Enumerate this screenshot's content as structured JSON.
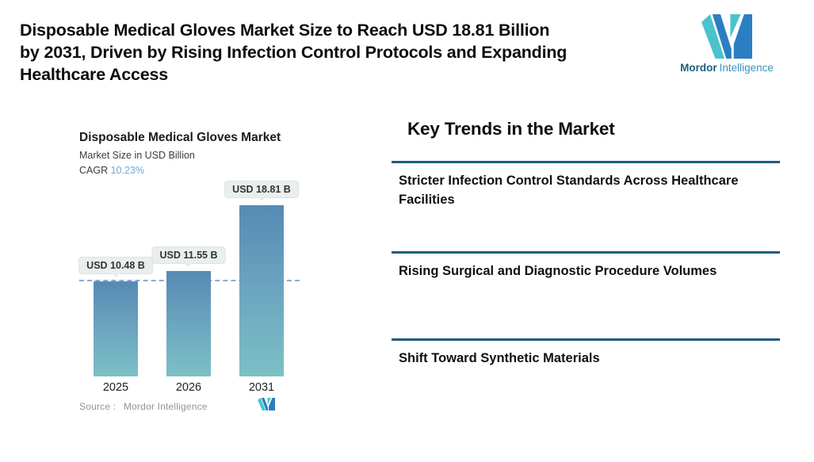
{
  "header": {
    "title_lines": [
      "Disposable Medical Gloves Market Size to Reach USD 18.81 Billion",
      "by 2031, Driven by Rising Infection Control Protocols and Expanding",
      "Healthcare Access"
    ],
    "logo": {
      "name_bold": "Mordor",
      "name_light": "Intelligence"
    }
  },
  "chart": {
    "title": "Disposable Medical Gloves Market",
    "subtitle": "Market Size in USD Billion",
    "cagr_label": "CAGR",
    "cagr_value": "10.23%",
    "source_label": "Source :",
    "source_name": "Mordor Intelligence"
  },
  "chart_data": {
    "type": "bar",
    "title": "Disposable Medical Gloves Market",
    "ylabel": "Market Size in USD Billion",
    "cagr_percent": 10.23,
    "categories": [
      "2025",
      "2026",
      "2031"
    ],
    "values": [
      10.48,
      11.55,
      18.81
    ],
    "value_labels": [
      "USD 10.48 B",
      "USD 11.55 B",
      "USD 18.81 B"
    ],
    "reference_line_at": 10.48,
    "grid": false,
    "legend": false,
    "bar_gradient_top": "#578ab4",
    "bar_gradient_mid": "#6ba4bf",
    "bar_gradient_bottom": "#7cc0c6",
    "dashed_line_color": "#8fa9cf"
  },
  "trends": {
    "heading": "Key Trends in the Market",
    "divider_color": "#1f5c80",
    "items": [
      "Stricter Infection Control Standards Across Healthcare Facilities",
      "Rising Surgical and Diagnostic Procedure Volumes",
      "Shift Toward Synthetic Materials"
    ]
  },
  "brand_colors": {
    "teal": "#4cc2ce",
    "blue": "#2b7ec2"
  }
}
